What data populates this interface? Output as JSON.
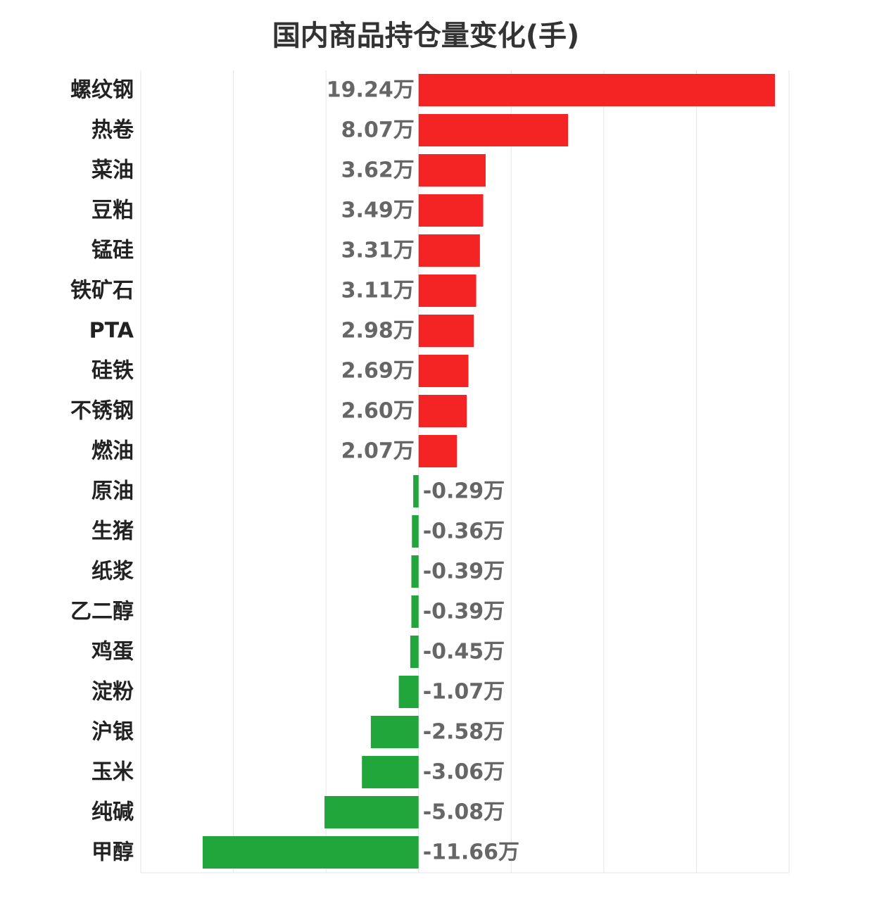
{
  "chart_data": {
    "type": "bar",
    "orientation": "horizontal",
    "title": "国内商品持仓量变化(手)",
    "unit_suffix": "万",
    "value_unit": "万手",
    "xlim": [
      -15,
      20
    ],
    "grid": true,
    "legend": "none",
    "colors": {
      "positive": "#f52424",
      "negative": "#21a63b",
      "grid": "#e6e6e6"
    },
    "categories": [
      "螺纹钢",
      "热卷",
      "菜油",
      "豆粕",
      "锰硅",
      "铁矿石",
      "PTA",
      "硅铁",
      "不锈钢",
      "燃油",
      "原油",
      "生猪",
      "纸浆",
      "乙二醇",
      "鸡蛋",
      "淀粉",
      "沪银",
      "玉米",
      "纯碱",
      "甲醇"
    ],
    "values": [
      19.24,
      8.07,
      3.62,
      3.49,
      3.31,
      3.11,
      2.98,
      2.69,
      2.6,
      2.07,
      -0.29,
      -0.36,
      -0.39,
      -0.39,
      -0.45,
      -1.07,
      -2.58,
      -3.06,
      -5.08,
      -11.66
    ],
    "value_labels": [
      "19.24万",
      "8.07万",
      "3.62万",
      "3.49万",
      "3.31万",
      "3.11万",
      "2.98万",
      "2.69万",
      "2.60万",
      "2.07万",
      "-0.29万",
      "-0.36万",
      "-0.39万",
      "-0.39万",
      "-0.45万",
      "-1.07万",
      "-2.58万",
      "-3.06万",
      "-5.08万",
      "-11.66万"
    ]
  }
}
